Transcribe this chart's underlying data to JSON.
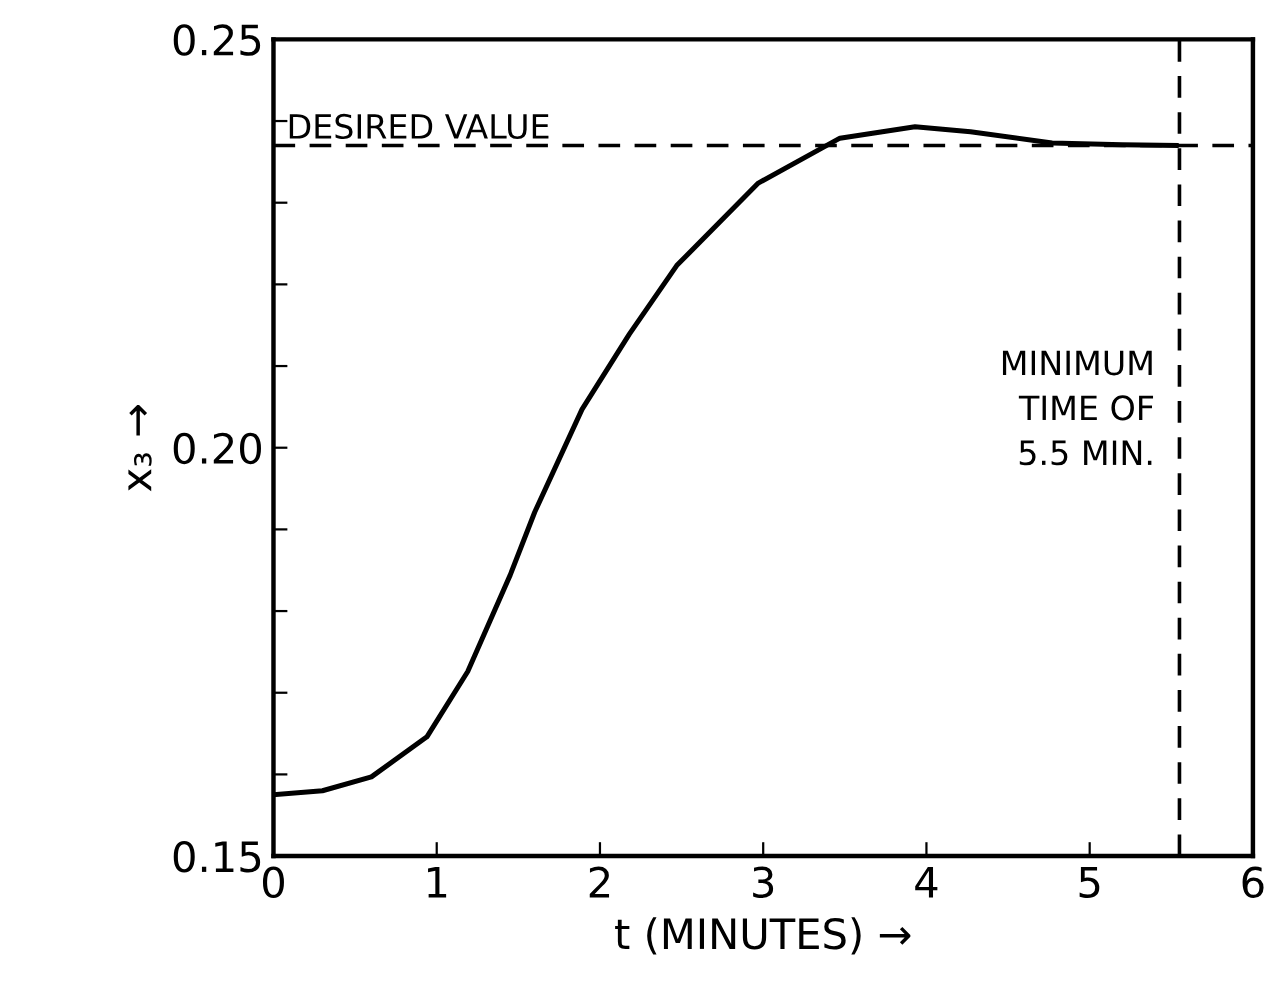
{
  "chart_data": {
    "type": "line",
    "xlabel": "t (MINUTES) →",
    "ylabel": "x₃ →",
    "x": [
      0,
      0.3,
      0.6,
      0.94,
      1.19,
      1.45,
      1.6,
      1.89,
      2.18,
      2.47,
      2.97,
      3.47,
      3.93,
      4.27,
      4.77,
      5.2,
      5.53
    ],
    "series": [
      {
        "color": "#000000",
        "values": [
          0.1575,
          0.158,
          0.1597,
          0.1646,
          0.1726,
          0.1844,
          0.1921,
          0.2047,
          0.2139,
          0.2223,
          0.2324,
          0.2379,
          0.2393,
          0.2387,
          0.2373,
          0.2371,
          0.237
        ]
      }
    ],
    "xlim": [
      0,
      6
    ],
    "xticks": [
      0,
      1,
      2,
      3,
      4,
      5,
      6
    ],
    "ylim": [
      0.15,
      0.25
    ],
    "yticks": [
      {
        "value": 0.15,
        "label": "0.15"
      },
      {
        "value": 0.16,
        "label": null
      },
      {
        "value": 0.17,
        "label": null
      },
      {
        "value": 0.18,
        "label": null
      },
      {
        "value": 0.19,
        "label": null
      },
      {
        "value": 0.2,
        "label": "0.20"
      },
      {
        "value": 0.21,
        "label": null
      },
      {
        "value": 0.22,
        "label": null
      },
      {
        "value": 0.23,
        "label": null
      },
      {
        "value": 0.24,
        "label": null
      },
      {
        "value": 0.25,
        "label": "0.25"
      }
    ],
    "ref_lines": [
      {
        "axis": "y",
        "value": 0.237,
        "label": "DESIRED VALUE",
        "line_style": "dashed",
        "color": "#000000"
      },
      {
        "axis": "x",
        "value": 5.55,
        "label": "MINIMUM\nTIME OF\n5.5 MIN.",
        "line_style": "dashed",
        "color": "#000000"
      }
    ],
    "grid": false,
    "legend": false,
    "marker": "none",
    "line_style": "solid"
  }
}
